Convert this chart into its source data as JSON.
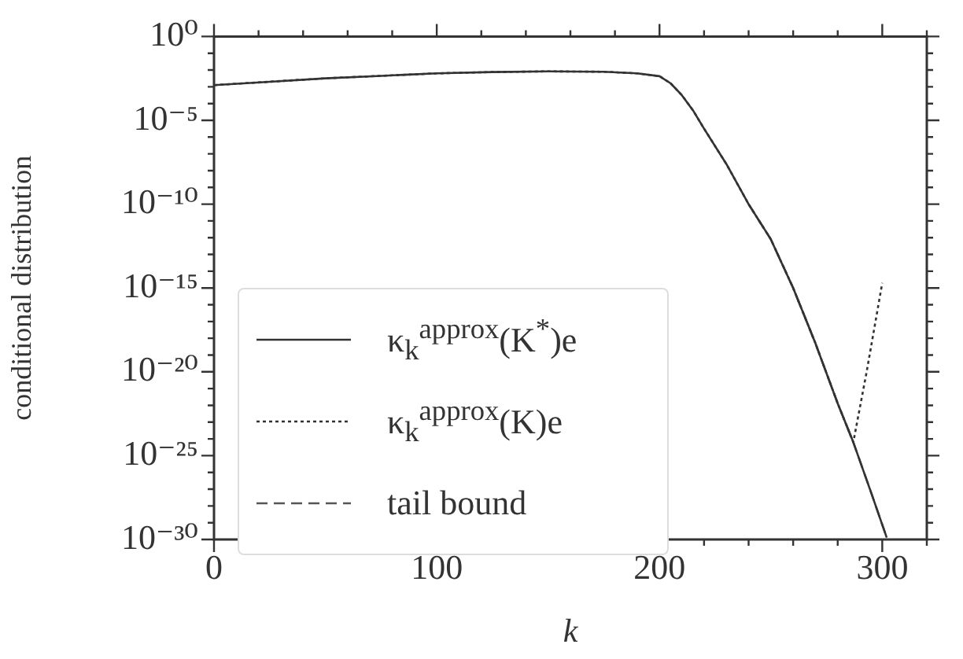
{
  "chart_data": {
    "type": "line",
    "xlabel": "k",
    "ylabel": "conditional distribution",
    "xlim": [
      0,
      320
    ],
    "ylim": [
      1e-30,
      1
    ],
    "log": "y",
    "grid": false,
    "legend": "bottom left",
    "marker": "none",
    "xticks": [
      0,
      {
        "value": 20,
        "label": null
      },
      {
        "value": 40,
        "label": null
      },
      {
        "value": 60,
        "label": null
      },
      {
        "value": 80,
        "label": null
      },
      100,
      {
        "value": 120,
        "label": null
      },
      {
        "value": 140,
        "label": null
      },
      {
        "value": 160,
        "label": null
      },
      {
        "value": 180,
        "label": null
      },
      200,
      {
        "value": 220,
        "label": null
      },
      {
        "value": 240,
        "label": null
      },
      {
        "value": 260,
        "label": null
      },
      {
        "value": 280,
        "label": null
      },
      300,
      {
        "value": 320,
        "label": null
      }
    ],
    "yticks": [
      {
        "value": 1,
        "label": "10⁰"
      },
      {
        "value": 0.1,
        "label": null
      },
      {
        "value": 0.01,
        "label": null
      },
      {
        "value": 0.001,
        "label": null
      },
      {
        "value": 0.0001,
        "label": null
      },
      {
        "value": 1e-05,
        "label": "10⁻⁵"
      },
      {
        "value": 1e-06,
        "label": null
      },
      {
        "value": 1e-07,
        "label": null
      },
      {
        "value": 1e-08,
        "label": null
      },
      {
        "value": 1e-09,
        "label": null
      },
      {
        "value": 1e-10,
        "label": "10⁻¹⁰"
      },
      {
        "value": 1e-11,
        "label": null
      },
      {
        "value": 1e-12,
        "label": null
      },
      {
        "value": 1e-13,
        "label": null
      },
      {
        "value": 1e-14,
        "label": null
      },
      {
        "value": 1e-15,
        "label": "10⁻¹⁵"
      },
      {
        "value": 1e-16,
        "label": null
      },
      {
        "value": 1e-17,
        "label": null
      },
      {
        "value": 1e-18,
        "label": null
      },
      {
        "value": 1e-19,
        "label": null
      },
      {
        "value": 1e-20,
        "label": "10⁻²⁰"
      },
      {
        "value": 1e-21,
        "label": null
      },
      {
        "value": 1e-22,
        "label": null
      },
      {
        "value": 1e-23,
        "label": null
      },
      {
        "value": 1e-24,
        "label": null
      },
      {
        "value": 1e-25,
        "label": "10⁻²⁵"
      },
      {
        "value": 1e-26,
        "label": null
      },
      {
        "value": 1e-27,
        "label": null
      },
      {
        "value": 1e-28,
        "label": null
      },
      {
        "value": 1e-29,
        "label": null
      },
      {
        "value": 1e-30,
        "label": "10⁻³⁰"
      }
    ],
    "series": [
      {
        "name": "κ$_{k}$$^{approx}$(K$^{*}$)e",
        "color": "#333333",
        "line_style": "solid",
        "x": [
          0,
          25,
          50,
          75,
          100,
          125,
          150,
          175,
          190,
          200,
          205,
          210,
          215,
          220,
          230,
          240,
          250,
          260,
          270,
          280,
          287,
          295,
          302
        ],
        "values": [
          0.00126,
          0.002,
          0.0032,
          0.0045,
          0.0063,
          0.0076,
          0.0083,
          0.0079,
          0.0063,
          0.0043,
          0.0016,
          0.00032,
          4e-05,
          3.2e-06,
          2.5e-08,
          1e-10,
          7.9e-13,
          1e-15,
          5e-19,
          1.3e-22,
          6.3e-25,
          6.3e-28,
          1.3e-30
        ]
      },
      {
        "name": "κ$_{k}$$^{approx}$(K)e",
        "color": "#333333",
        "line_style": "dotted",
        "x": [
          0,
          25,
          50,
          75,
          100,
          125,
          150,
          175,
          190,
          200,
          205,
          210,
          215,
          220,
          230,
          240,
          250,
          260,
          270,
          280,
          287,
          293,
          300
        ],
        "values": [
          0.00126,
          0.002,
          0.0032,
          0.0045,
          0.0063,
          0.0076,
          0.0083,
          0.0079,
          0.0063,
          0.0043,
          0.0016,
          0.00032,
          4e-05,
          3.2e-06,
          2.5e-08,
          1e-10,
          7.9e-13,
          1e-15,
          5e-19,
          1.3e-22,
          6.3e-25,
          1e-20,
          2e-15
        ]
      },
      {
        "name": "tail bound",
        "color": "#555555",
        "line_style": "dashed",
        "x": [
          240,
          250,
          260,
          270,
          280,
          287,
          295,
          302
        ],
        "values": [
          1e-10,
          7.9e-13,
          1e-15,
          5e-19,
          1.3e-22,
          6.3e-25,
          6.3e-28,
          1.3e-30
        ]
      }
    ]
  }
}
